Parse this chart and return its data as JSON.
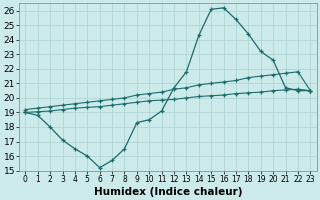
{
  "xlabel": "Humidex (Indice chaleur)",
  "xlim": [
    -0.5,
    23.5
  ],
  "ylim": [
    15,
    26.5
  ],
  "xticks": [
    0,
    1,
    2,
    3,
    4,
    5,
    6,
    7,
    8,
    9,
    10,
    11,
    12,
    13,
    14,
    15,
    16,
    17,
    18,
    19,
    20,
    21,
    22,
    23
  ],
  "yticks": [
    15,
    16,
    17,
    18,
    19,
    20,
    21,
    22,
    23,
    24,
    25,
    26
  ],
  "background_color": "#cdeaea",
  "grid_color": "#b0d4d4",
  "line_color": "#1a6b6b",
  "line1_x": [
    0,
    1,
    2,
    3,
    4,
    5,
    6,
    7,
    8,
    9,
    10,
    11,
    12,
    13,
    14,
    15,
    16,
    17,
    18,
    19,
    20,
    21,
    22,
    23
  ],
  "line1_y": [
    19.0,
    18.8,
    18.0,
    17.1,
    16.5,
    16.0,
    15.2,
    15.7,
    16.5,
    18.3,
    18.5,
    19.1,
    20.7,
    21.8,
    24.3,
    26.1,
    26.2,
    25.4,
    24.4,
    23.2,
    22.6,
    20.7,
    20.5,
    20.5
  ],
  "line2_x": [
    0,
    1,
    2,
    3,
    4,
    5,
    6,
    7,
    8,
    9,
    10,
    11,
    12,
    13,
    14,
    15,
    16,
    17,
    18,
    19,
    20,
    21,
    22,
    23
  ],
  "line2_y": [
    19.2,
    19.3,
    19.4,
    19.5,
    19.6,
    19.7,
    19.8,
    19.9,
    20.0,
    20.2,
    20.3,
    20.4,
    20.6,
    20.7,
    20.9,
    21.0,
    21.1,
    21.2,
    21.4,
    21.5,
    21.6,
    21.7,
    21.8,
    20.5
  ],
  "line3_x": [
    0,
    1,
    2,
    3,
    4,
    5,
    6,
    7,
    8,
    9,
    10,
    11,
    12,
    13,
    14,
    15,
    16,
    17,
    18,
    19,
    20,
    21,
    22,
    23
  ],
  "line3_y": [
    19.0,
    19.05,
    19.1,
    19.2,
    19.3,
    19.35,
    19.4,
    19.5,
    19.6,
    19.7,
    19.8,
    19.85,
    19.9,
    20.0,
    20.1,
    20.15,
    20.2,
    20.3,
    20.35,
    20.4,
    20.5,
    20.55,
    20.6,
    20.5
  ],
  "xtick_fontsize": 5.5,
  "ytick_fontsize": 6.5,
  "xlabel_fontsize": 7.5
}
